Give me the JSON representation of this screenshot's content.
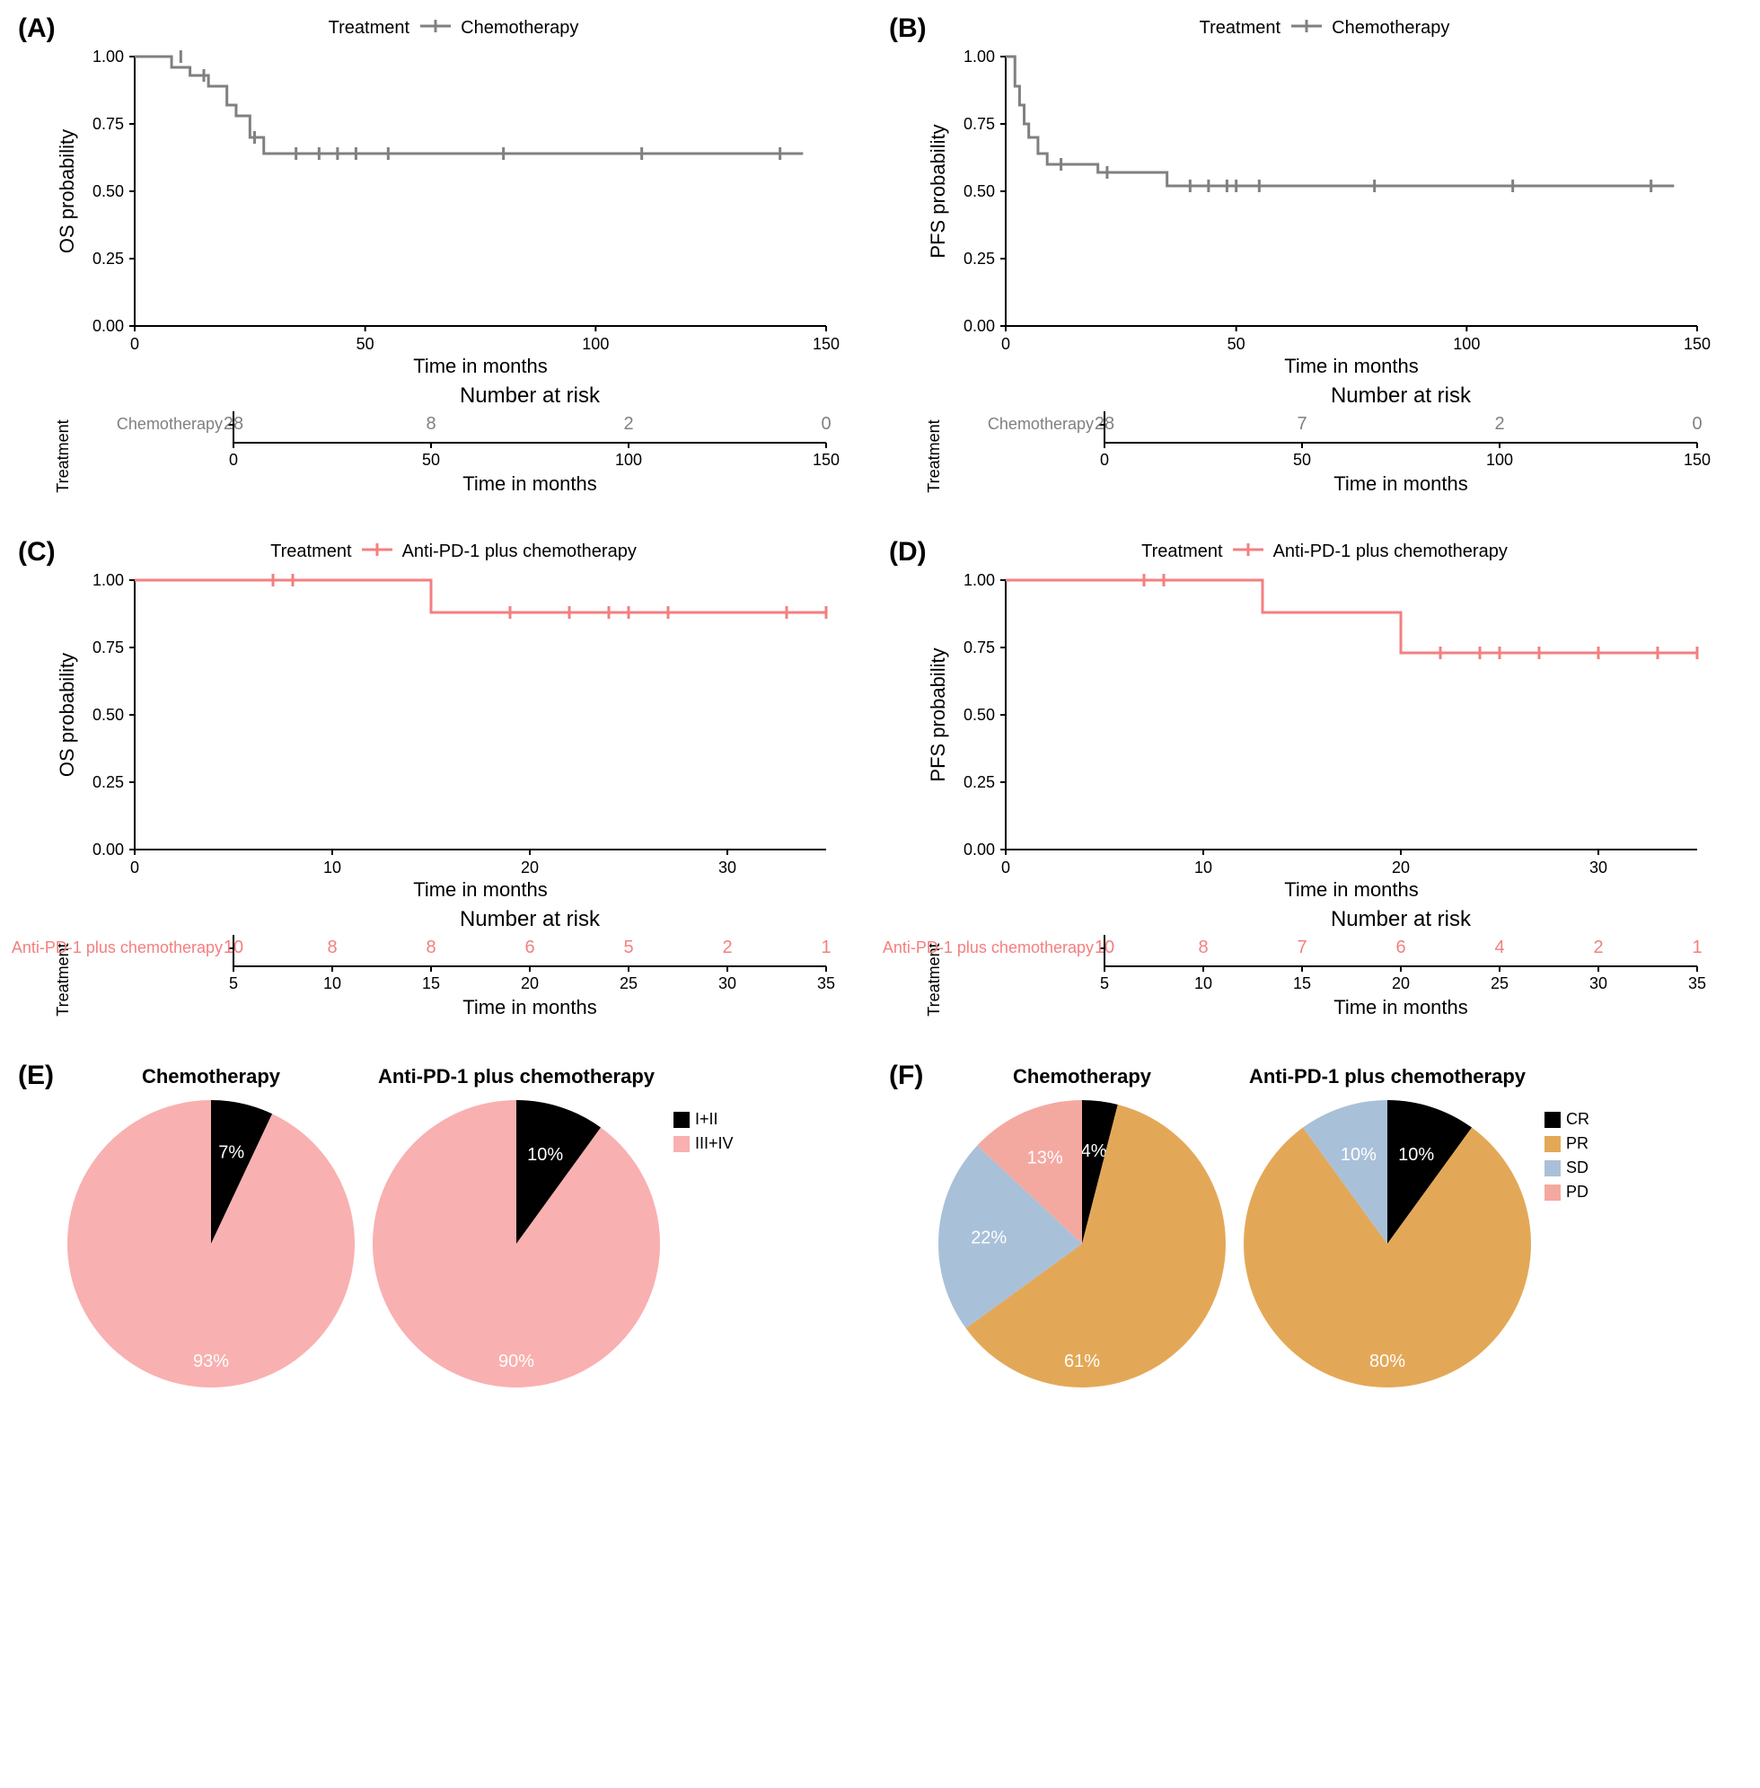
{
  "colors": {
    "chemo": "#808080",
    "anti": "#f47f7f",
    "black": "#000000",
    "pink": "#f9b0b0",
    "orange": "#e3a857",
    "lightblue": "#a9c0d9",
    "salmon": "#f4a9a0",
    "axis": "#000000",
    "grid_bg": "#ffffff"
  },
  "panelA": {
    "label": "(A)",
    "legend_prefix": "Treatment",
    "legend_series": "Chemotherapy",
    "series_color": "#808080",
    "ylabel": "OS probability",
    "xlabel": "Time in months",
    "xlim": [
      0,
      150
    ],
    "xticks": [
      0,
      50,
      100,
      150
    ],
    "ylim": [
      0,
      1
    ],
    "yticks": [
      0.0,
      0.25,
      0.5,
      0.75,
      1.0
    ],
    "steps": [
      [
        0,
        1.0
      ],
      [
        8,
        1.0
      ],
      [
        8,
        0.96
      ],
      [
        12,
        0.96
      ],
      [
        12,
        0.93
      ],
      [
        16,
        0.93
      ],
      [
        16,
        0.89
      ],
      [
        20,
        0.89
      ],
      [
        20,
        0.82
      ],
      [
        22,
        0.82
      ],
      [
        22,
        0.78
      ],
      [
        25,
        0.78
      ],
      [
        25,
        0.7
      ],
      [
        28,
        0.7
      ],
      [
        28,
        0.64
      ],
      [
        145,
        0.64
      ]
    ],
    "censors": [
      [
        10,
        1.0
      ],
      [
        15,
        0.93
      ],
      [
        26,
        0.7
      ],
      [
        35,
        0.64
      ],
      [
        40,
        0.64
      ],
      [
        44,
        0.64
      ],
      [
        48,
        0.64
      ],
      [
        55,
        0.64
      ],
      [
        80,
        0.64
      ],
      [
        110,
        0.64
      ],
      [
        140,
        0.64
      ]
    ],
    "risk_title": "Number at risk",
    "risk_row_label": "Chemotherapy",
    "risk_ticks": [
      0,
      50,
      100,
      150
    ],
    "risk_values": [
      "28",
      "8",
      "2",
      "0"
    ],
    "risk_xlabel": "Time in months",
    "ylabel_risk": "Treatment"
  },
  "panelB": {
    "label": "(B)",
    "legend_prefix": "Treatment",
    "legend_series": "Chemotherapy",
    "series_color": "#808080",
    "ylabel": "PFS probability",
    "xlabel": "Time in months",
    "xlim": [
      0,
      150
    ],
    "xticks": [
      0,
      50,
      100,
      150
    ],
    "ylim": [
      0,
      1
    ],
    "yticks": [
      0.0,
      0.25,
      0.5,
      0.75,
      1.0
    ],
    "steps": [
      [
        0,
        1.0
      ],
      [
        2,
        1.0
      ],
      [
        2,
        0.89
      ],
      [
        3,
        0.89
      ],
      [
        3,
        0.82
      ],
      [
        4,
        0.82
      ],
      [
        4,
        0.75
      ],
      [
        5,
        0.75
      ],
      [
        5,
        0.7
      ],
      [
        7,
        0.7
      ],
      [
        7,
        0.64
      ],
      [
        9,
        0.64
      ],
      [
        9,
        0.6
      ],
      [
        20,
        0.6
      ],
      [
        20,
        0.57
      ],
      [
        35,
        0.57
      ],
      [
        35,
        0.52
      ],
      [
        145,
        0.52
      ]
    ],
    "censors": [
      [
        12,
        0.6
      ],
      [
        22,
        0.57
      ],
      [
        40,
        0.52
      ],
      [
        44,
        0.52
      ],
      [
        48,
        0.52
      ],
      [
        50,
        0.52
      ],
      [
        55,
        0.52
      ],
      [
        80,
        0.52
      ],
      [
        110,
        0.52
      ],
      [
        140,
        0.52
      ]
    ],
    "risk_title": "Number at risk",
    "risk_row_label": "Chemotherapy",
    "risk_ticks": [
      0,
      50,
      100,
      150
    ],
    "risk_values": [
      "28",
      "7",
      "2",
      "0"
    ],
    "risk_xlabel": "Time in months",
    "ylabel_risk": "Treatment"
  },
  "panelC": {
    "label": "(C)",
    "legend_prefix": "Treatment",
    "legend_series": "Anti-PD-1 plus chemotherapy",
    "series_color": "#f47f7f",
    "ylabel": "OS probability",
    "xlabel": "Time in months",
    "xlim": [
      0,
      35
    ],
    "xticks": [
      0,
      10,
      20,
      30
    ],
    "ylim": [
      0,
      1
    ],
    "yticks": [
      0.0,
      0.25,
      0.5,
      0.75,
      1.0
    ],
    "steps": [
      [
        0,
        1.0
      ],
      [
        15,
        1.0
      ],
      [
        15,
        0.88
      ],
      [
        35,
        0.88
      ]
    ],
    "censors": [
      [
        7,
        1.0
      ],
      [
        8,
        1.0
      ],
      [
        19,
        0.88
      ],
      [
        22,
        0.88
      ],
      [
        24,
        0.88
      ],
      [
        25,
        0.88
      ],
      [
        27,
        0.88
      ],
      [
        33,
        0.88
      ],
      [
        35,
        0.88
      ]
    ],
    "risk_title": "Number at risk",
    "risk_row_label": "Anti-PD-1 plus chemotherapy",
    "risk_ticks": [
      5,
      10,
      15,
      20,
      25,
      30,
      35
    ],
    "risk_values": [
      "10",
      "8",
      "8",
      "6",
      "5",
      "2",
      "1"
    ],
    "risk_xlabel": "Time in months",
    "ylabel_risk": "Treatment"
  },
  "panelD": {
    "label": "(D)",
    "legend_prefix": "Treatment",
    "legend_series": "Anti-PD-1 plus chemotherapy",
    "series_color": "#f47f7f",
    "ylabel": "PFS probability",
    "xlabel": "Time in months",
    "xlim": [
      0,
      35
    ],
    "xticks": [
      0,
      10,
      20,
      30
    ],
    "ylim": [
      0,
      1
    ],
    "yticks": [
      0.0,
      0.25,
      0.5,
      0.75,
      1.0
    ],
    "steps": [
      [
        0,
        1.0
      ],
      [
        13,
        1.0
      ],
      [
        13,
        0.88
      ],
      [
        20,
        0.88
      ],
      [
        20,
        0.73
      ],
      [
        35,
        0.73
      ]
    ],
    "censors": [
      [
        7,
        1.0
      ],
      [
        8,
        1.0
      ],
      [
        22,
        0.73
      ],
      [
        24,
        0.73
      ],
      [
        25,
        0.73
      ],
      [
        27,
        0.73
      ],
      [
        30,
        0.73
      ],
      [
        33,
        0.73
      ],
      [
        35,
        0.73
      ]
    ],
    "risk_title": "Number at risk",
    "risk_row_label": "Anti-PD-1 plus chemotherapy",
    "risk_ticks": [
      5,
      10,
      15,
      20,
      25,
      30,
      35
    ],
    "risk_values": [
      "10",
      "8",
      "7",
      "6",
      "4",
      "2",
      "1"
    ],
    "risk_xlabel": "Time in months",
    "ylabel_risk": "Treatment"
  },
  "panelE": {
    "label": "(E)",
    "pie1_title": "Chemotherapy",
    "pie2_title": "Anti-PD-1 plus chemotherapy",
    "legend": [
      {
        "label": "I+II",
        "color": "#000000"
      },
      {
        "label": "III+IV",
        "color": "#f9b0b0"
      }
    ],
    "pie1": [
      {
        "label": "7%",
        "value": 7,
        "color": "#000000",
        "text_color": "#ffffff"
      },
      {
        "label": "93%",
        "value": 93,
        "color": "#f9b0b0",
        "text_color": "#ffffff"
      }
    ],
    "pie2": [
      {
        "label": "10%",
        "value": 10,
        "color": "#000000",
        "text_color": "#ffffff"
      },
      {
        "label": "90%",
        "value": 90,
        "color": "#f9b0b0",
        "text_color": "#ffffff"
      }
    ]
  },
  "panelF": {
    "label": "(F)",
    "pie1_title": "Chemotherapy",
    "pie2_title": "Anti-PD-1 plus chemotherapy",
    "legend": [
      {
        "label": "CR",
        "color": "#000000"
      },
      {
        "label": "PR",
        "color": "#e3a857"
      },
      {
        "label": "SD",
        "color": "#a9c0d9"
      },
      {
        "label": "PD",
        "color": "#f4a9a0"
      }
    ],
    "pie1": [
      {
        "label": "4%",
        "value": 4,
        "color": "#000000",
        "text_color": "#ffffff"
      },
      {
        "label": "61%",
        "value": 61,
        "color": "#e3a857",
        "text_color": "#ffffff"
      },
      {
        "label": "22%",
        "value": 22,
        "color": "#a9c0d9",
        "text_color": "#ffffff"
      },
      {
        "label": "13%",
        "value": 13,
        "color": "#f4a9a0",
        "text_color": "#ffffff"
      }
    ],
    "pie2": [
      {
        "label": "10%",
        "value": 10,
        "color": "#000000",
        "text_color": "#ffffff"
      },
      {
        "label": "80%",
        "value": 80,
        "color": "#e3a857",
        "text_color": "#ffffff"
      },
      {
        "label": "10%",
        "value": 10,
        "color": "#a9c0d9",
        "text_color": "#ffffff"
      }
    ]
  }
}
